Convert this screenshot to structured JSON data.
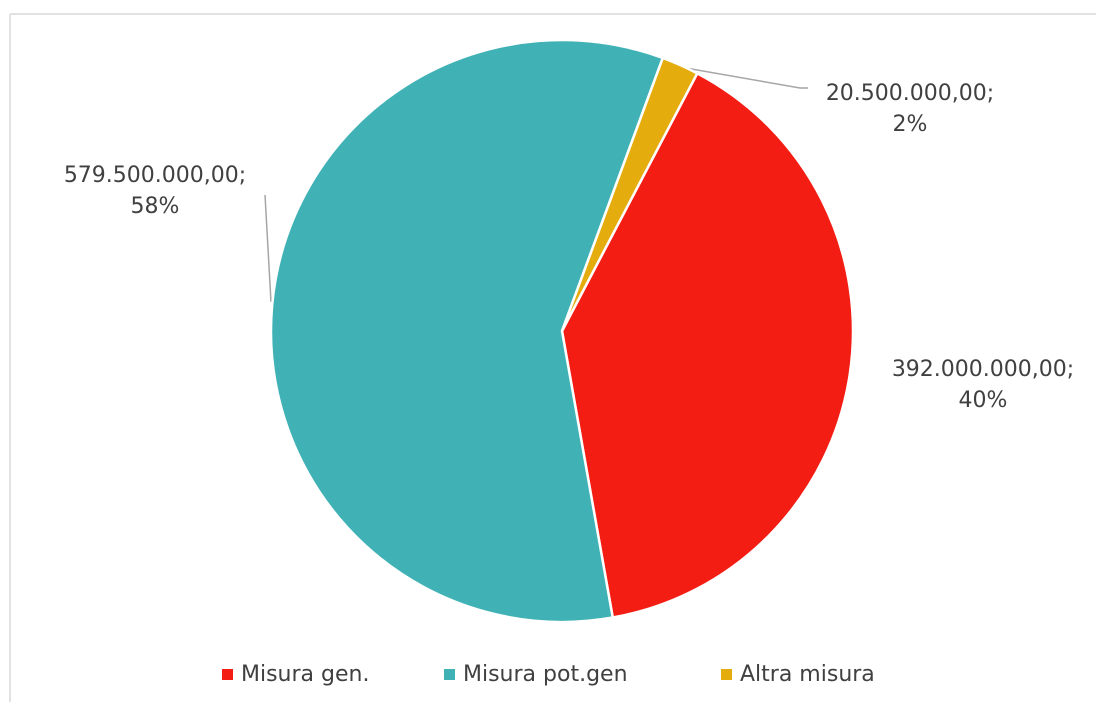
{
  "chart_data": {
    "type": "pie",
    "categories": [
      "Misura gen.",
      "Misura pot.gen",
      "Altra misura"
    ],
    "values": [
      392000000,
      579500000,
      20500000
    ],
    "value_labels": [
      [
        "392.000.000,00;",
        "40%"
      ],
      [
        "579.500.000,00;",
        "58%"
      ],
      [
        "20.500.000,00;",
        "2%"
      ]
    ],
    "colors": [
      "#f41d14",
      "#40b2b6",
      "#e5ac0e"
    ],
    "legend": "bottom"
  }
}
